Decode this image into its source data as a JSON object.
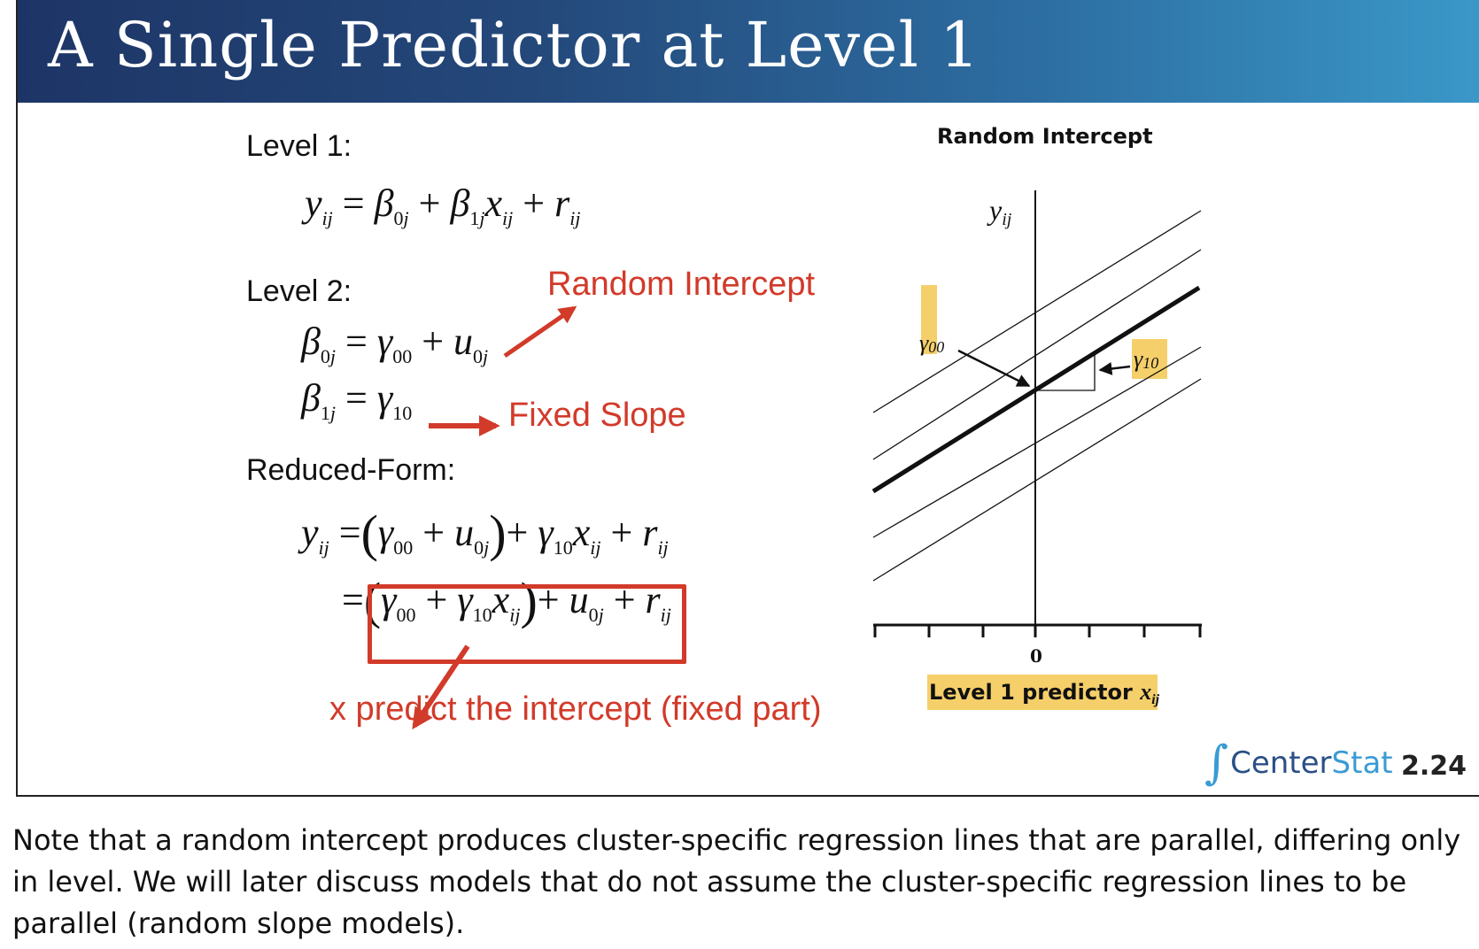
{
  "slide": {
    "title": "A Single Predictor at Level 1",
    "level1_label": "Level 1:",
    "level2_label": "Level 2:",
    "reduced_label": "Reduced-Form:"
  },
  "annotations": {
    "random_intercept": "Random Intercept",
    "fixed_slope": "Fixed Slope",
    "x_predict": "x predict the intercept (fixed part)"
  },
  "chart_data": {
    "type": "line",
    "title": "Random Intercept",
    "ylabel": "y",
    "ylabel_sub": "ij",
    "xlabel": "Level 1 predictor ",
    "xlabel_var": "x",
    "xlabel_sub": "ij",
    "x_tick_label": "0",
    "gamma00_label": "γ",
    "gamma00_sub": "00",
    "gamma10_label": "γ",
    "gamma10_sub": "10",
    "highlight_color": "#f5cf6a",
    "grid": false
  },
  "footer": {
    "logo_center": "Center",
    "logo_stat": "Stat",
    "slide_number": "2.24"
  },
  "note": "Note that a random intercept produces cluster-specific regression lines that are parallel, differing only in level.  We will later discuss models that do not assume the cluster-specific regression lines to be parallel (random slope models)."
}
